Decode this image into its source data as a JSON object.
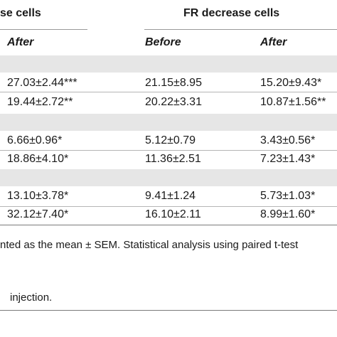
{
  "table": {
    "group_left_label": "se cells",
    "group_right_label": "FR decrease cells",
    "subheaders": {
      "left_after": "After",
      "right_before": "Before",
      "right_after": "After"
    },
    "rows": [
      {
        "left_after": "27.03±2.44***",
        "right_before": "21.15±8.95",
        "right_after": "15.20±9.43*"
      },
      {
        "left_after": "19.44±2.72**",
        "right_before": "20.22±3.31",
        "right_after": "10.87±1.56**"
      },
      {
        "left_after": "6.66±0.96*",
        "right_before": "5.12±0.79",
        "right_after": "3.43±0.56*"
      },
      {
        "left_after": "18.86±4.10*",
        "right_before": "11.36±2.51",
        "right_after": "7.23±1.43*"
      },
      {
        "left_after": "13.10±3.78*",
        "right_before": "9.41±1.24",
        "right_after": "5.73±1.03*"
      },
      {
        "left_after": "32.12±7.40*",
        "right_before": "16.10±2.11",
        "right_after": "8.99±1.60*"
      }
    ]
  },
  "footnotes": {
    "line1": "nted as the mean ± SEM. Statistical analysis using paired t-test",
    "line2": "injection."
  }
}
